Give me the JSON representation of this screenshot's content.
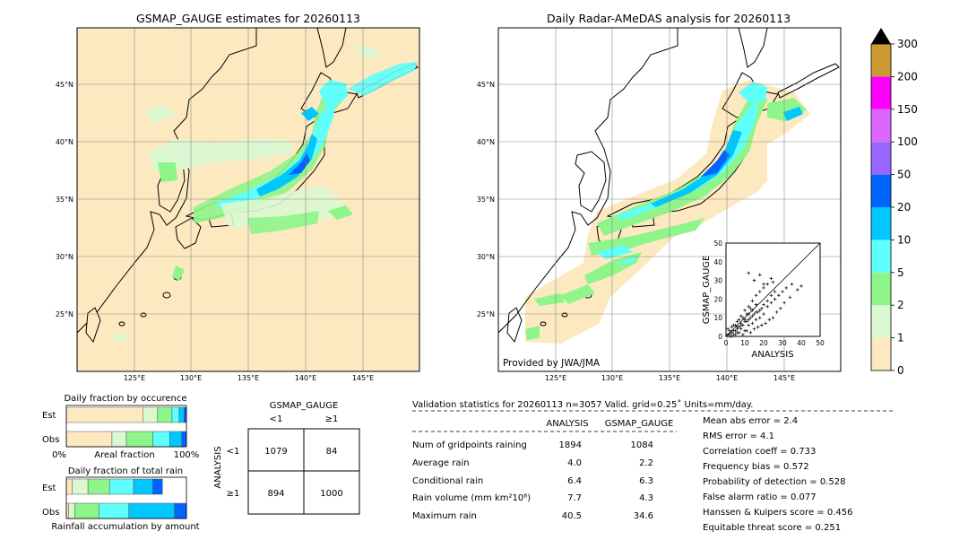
{
  "colors": {
    "land": "#fde9c0",
    "sea": "#ffffff",
    "grid": "#888888",
    "rain_levels": [
      "#fde9c0",
      "#dcf8d2",
      "#8ef58b",
      "#5ffffb",
      "#00c8ff",
      "#0064ff",
      "#9966ff",
      "#dd66ff",
      "#ff00ff",
      "#cc9933"
    ]
  },
  "left_map": {
    "title": "GSMAP_GAUGE estimates for 20260113",
    "lat_labels": [
      "25°N",
      "30°N",
      "35°N",
      "40°N",
      "45°N"
    ],
    "lon_labels": [
      "125°E",
      "130°E",
      "135°E",
      "140°E",
      "145°E"
    ]
  },
  "right_map": {
    "title": "Daily Radar-AMeDAS analysis for 20260113",
    "lat_labels": [
      "25°N",
      "30°N",
      "35°N",
      "40°N",
      "45°N"
    ],
    "lon_labels": [
      "125°E",
      "130°E",
      "135°E",
      "140°E",
      "145°E"
    ],
    "credit": "Provided by JWA/JMA"
  },
  "colorbar": {
    "labels": [
      "0",
      "1",
      "2",
      "5",
      "10",
      "20",
      "50",
      "100",
      "150",
      "200",
      "300"
    ]
  },
  "scatter": {
    "xlabel": "ANALYSIS",
    "ylabel": "GSMAP_GAUGE",
    "ticks": [
      "0",
      "10",
      "20",
      "30",
      "40",
      "50"
    ]
  },
  "fraction_charts": {
    "occurrence_title": "Daily fraction by occurence",
    "rain_title": "Daily fraction of total rain",
    "est_label": "Est",
    "obs_label": "Obs",
    "axis_left": "0%",
    "axis_mid": "Areal fraction",
    "axis_right": "100%",
    "rain_axis_label": "Rainfall accumulation by amount"
  },
  "contingency": {
    "title": "GSMAP_GAUGE",
    "col_lt": "<1",
    "col_ge": "≥1",
    "row_axis": "ANALYSIS",
    "row_lt": "<1",
    "row_ge": "≥1",
    "cells": [
      [
        "1079",
        "84"
      ],
      [
        "894",
        "1000"
      ]
    ]
  },
  "validation": {
    "header": "Validation statistics for 20260113  n=3057 Valid. grid=0.25˚ Units=mm/day.",
    "col_analysis": "ANALYSIS",
    "col_gsmap": "GSMAP_GAUGE",
    "rows": [
      {
        "label": "Num of gridpoints raining",
        "analysis": "1894",
        "gsmap": "1084"
      },
      {
        "label": "Average rain",
        "analysis": "4.0",
        "gsmap": "2.2"
      },
      {
        "label": "Conditional rain",
        "analysis": "6.4",
        "gsmap": "6.3"
      },
      {
        "label": "Rain volume (mm km²10⁶)",
        "analysis": "7.7",
        "gsmap": "4.3"
      },
      {
        "label": "Maximum rain",
        "analysis": "40.5",
        "gsmap": "34.6"
      }
    ],
    "scores": [
      "Mean abs error =    2.4",
      "RMS error =    4.1",
      "Correlation coeff =  0.733",
      "Frequency bias =  0.572",
      "Probability of detection =  0.528",
      "False alarm ratio =  0.077",
      "Hanssen & Kuipers score =  0.456",
      "Equitable threat score =  0.251"
    ]
  },
  "chart_data": [
    {
      "type": "heatmap",
      "title": "GSMAP_GAUGE estimates for 20260113",
      "xlim": [
        120,
        150
      ],
      "ylim": [
        20,
        50
      ],
      "x_ticks": [
        125,
        130,
        135,
        140,
        145
      ],
      "y_ticks": [
        25,
        30,
        35,
        40,
        45
      ],
      "grid": true
    },
    {
      "type": "heatmap",
      "title": "Daily Radar-AMeDAS analysis for 20260113",
      "xlim": [
        120,
        150
      ],
      "ylim": [
        20,
        50
      ],
      "x_ticks": [
        125,
        130,
        135,
        140,
        145
      ],
      "y_ticks": [
        25,
        30,
        35,
        40,
        45
      ],
      "grid": true
    },
    {
      "type": "scatter",
      "xlabel": "ANALYSIS",
      "ylabel": "GSMAP_GAUGE",
      "xlim": [
        0,
        50
      ],
      "ylim": [
        0,
        50
      ],
      "points": [
        [
          1,
          1
        ],
        [
          2,
          0
        ],
        [
          3,
          2
        ],
        [
          4,
          1
        ],
        [
          5,
          3
        ],
        [
          6,
          2
        ],
        [
          7,
          5
        ],
        [
          8,
          4
        ],
        [
          9,
          6
        ],
        [
          10,
          3
        ],
        [
          11,
          8
        ],
        [
          12,
          6
        ],
        [
          13,
          10
        ],
        [
          14,
          7
        ],
        [
          15,
          12
        ],
        [
          16,
          9
        ],
        [
          17,
          13
        ],
        [
          18,
          10
        ],
        [
          19,
          15
        ],
        [
          20,
          12
        ],
        [
          22,
          16
        ],
        [
          24,
          18
        ],
        [
          26,
          20
        ],
        [
          28,
          22
        ],
        [
          30,
          24
        ],
        [
          32,
          26
        ],
        [
          35,
          28
        ],
        [
          3,
          0
        ],
        [
          5,
          1
        ],
        [
          7,
          2
        ],
        [
          9,
          1
        ],
        [
          11,
          3
        ],
        [
          13,
          2
        ],
        [
          15,
          4
        ],
        [
          17,
          5
        ],
        [
          19,
          6
        ],
        [
          21,
          7
        ],
        [
          23,
          9
        ],
        [
          25,
          10
        ],
        [
          27,
          13
        ],
        [
          29,
          15
        ],
        [
          31,
          18
        ],
        [
          34,
          21
        ],
        [
          38,
          25
        ],
        [
          40,
          27
        ],
        [
          6,
          8
        ],
        [
          8,
          11
        ],
        [
          10,
          14
        ],
        [
          12,
          16
        ],
        [
          14,
          19
        ],
        [
          16,
          22
        ],
        [
          18,
          24
        ],
        [
          20,
          26
        ],
        [
          22,
          28
        ],
        [
          24,
          31
        ],
        [
          12,
          34
        ],
        [
          15,
          30
        ],
        [
          18,
          33
        ],
        [
          20,
          28
        ],
        [
          25,
          29
        ],
        [
          2,
          3
        ],
        [
          4,
          6
        ],
        [
          6,
          4
        ],
        [
          8,
          7
        ],
        [
          10,
          9
        ],
        [
          12,
          12
        ],
        [
          14,
          14
        ],
        [
          16,
          17
        ],
        [
          1,
          4
        ],
        [
          3,
          5
        ],
        [
          5,
          6
        ],
        [
          7,
          9
        ],
        [
          9,
          10
        ],
        [
          11,
          12
        ],
        [
          13,
          15
        ],
        [
          2,
          1
        ],
        [
          4,
          3
        ],
        [
          6,
          5
        ],
        [
          8,
          6
        ],
        [
          10,
          8
        ],
        [
          12,
          9
        ],
        [
          14,
          11
        ],
        [
          16,
          13
        ],
        [
          18,
          14
        ],
        [
          20,
          17
        ],
        [
          22,
          19
        ],
        [
          24,
          22
        ],
        [
          26,
          24
        ]
      ]
    },
    {
      "type": "bar",
      "title": "Daily fraction by occurence",
      "categories": [
        "Est",
        "Obs"
      ],
      "series": [
        {
          "values": [
            0.64,
            0.38
          ]
        },
        {
          "values": [
            0.12,
            0.12
          ]
        },
        {
          "values": [
            0.12,
            0.22
          ]
        },
        {
          "values": [
            0.06,
            0.14
          ]
        },
        {
          "values": [
            0.04,
            0.1
          ]
        },
        {
          "values": [
            0.02,
            0.04
          ]
        }
      ]
    },
    {
      "type": "bar",
      "title": "Daily fraction of total rain",
      "categories": [
        "Est",
        "Obs"
      ],
      "series": [
        {
          "values": [
            0.05,
            0.02
          ]
        },
        {
          "values": [
            0.13,
            0.05
          ]
        },
        {
          "values": [
            0.18,
            0.2
          ]
        },
        {
          "values": [
            0.2,
            0.25
          ]
        },
        {
          "values": [
            0.16,
            0.38
          ]
        },
        {
          "values": [
            0.08,
            0.1
          ]
        }
      ]
    }
  ]
}
